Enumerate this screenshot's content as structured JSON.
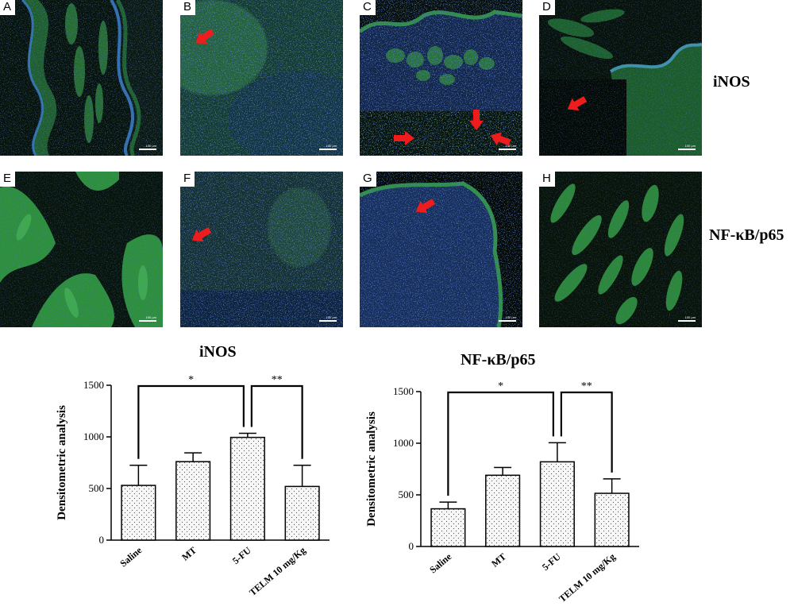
{
  "panels": [
    {
      "label": "A",
      "scale": "100 µm"
    },
    {
      "label": "B",
      "scale": "100 µm"
    },
    {
      "label": "C",
      "scale": "100 µm"
    },
    {
      "label": "D",
      "scale": "100 µm"
    },
    {
      "label": "E",
      "scale": "100 µm"
    },
    {
      "label": "F",
      "scale": "100 µm"
    },
    {
      "label": "G",
      "scale": "100 µm"
    },
    {
      "label": "H",
      "scale": "100 µm"
    }
  ],
  "row_labels": [
    "iNOS",
    "NF-κB/p65"
  ],
  "colors": {
    "bar_fill": "#f6f6f6",
    "bar_stroke": "#000000",
    "arrow": "#ee1c1c",
    "stain_green": "#33a344",
    "stain_blue": "#2a3fb0"
  },
  "chart_data": [
    {
      "type": "bar",
      "title": "iNOS",
      "ylabel": "Densitometric analysis",
      "xlabel": "",
      "categories": [
        "Saline",
        "MT",
        "5-FU",
        "TELM 10 mg/Kg"
      ],
      "values": [
        530,
        760,
        995,
        520
      ],
      "errors": [
        195,
        85,
        40,
        205
      ],
      "ylim": [
        0,
        1500
      ],
      "yticks": [
        0,
        500,
        1000,
        1500
      ],
      "significance": [
        {
          "from": "Saline",
          "to": "5-FU",
          "label": "*"
        },
        {
          "from": "5-FU",
          "to": "TELM 10 mg/Kg",
          "label": "**"
        }
      ]
    },
    {
      "type": "bar",
      "title": "NF-κB/p65",
      "ylabel": "Densitometric analysis",
      "xlabel": "",
      "categories": [
        "Saline",
        "MT",
        "5-FU",
        "TELM 10 mg/Kg"
      ],
      "values": [
        365,
        690,
        820,
        515
      ],
      "errors": [
        65,
        75,
        185,
        140
      ],
      "ylim": [
        0,
        1500
      ],
      "yticks": [
        0,
        500,
        1000,
        1500
      ],
      "significance": [
        {
          "from": "Saline",
          "to": "5-FU",
          "label": "*"
        },
        {
          "from": "5-FU",
          "to": "TELM 10 mg/Kg",
          "label": "**"
        }
      ]
    }
  ]
}
